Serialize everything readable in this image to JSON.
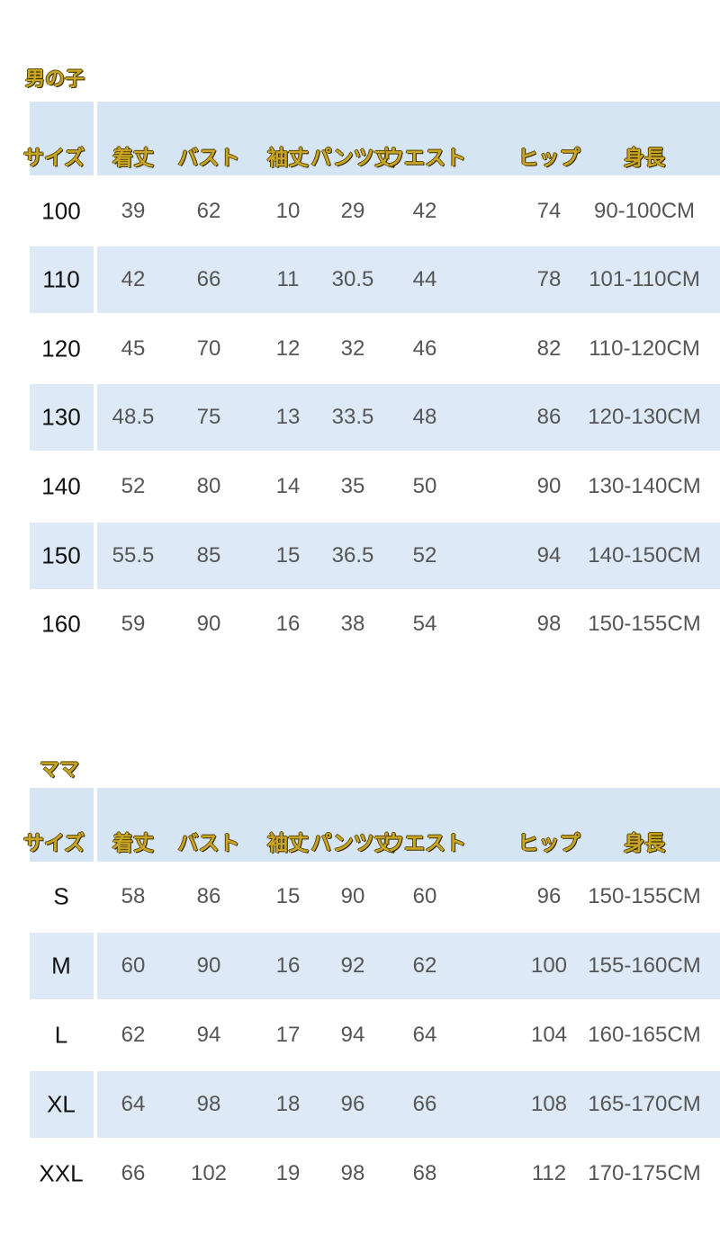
{
  "tables": [
    {
      "title": "男の子",
      "headers": [
        "サイズ",
        "着丈",
        "バスト",
        "袖丈",
        "パンツ丈",
        "ウエスト",
        "ヒップ",
        "身長"
      ],
      "rows": [
        [
          "100",
          "39",
          "62",
          "10",
          "29",
          "42",
          "74",
          "90-100CM"
        ],
        [
          "110",
          "42",
          "66",
          "11",
          "30.5",
          "44",
          "78",
          "101-110CM"
        ],
        [
          "120",
          "45",
          "70",
          "12",
          "32",
          "46",
          "82",
          "110-120CM"
        ],
        [
          "130",
          "48.5",
          "75",
          "13",
          "33.5",
          "48",
          "86",
          "120-130CM"
        ],
        [
          "140",
          "52",
          "80",
          "14",
          "35",
          "50",
          "90",
          "130-140CM"
        ],
        [
          "150",
          "55.5",
          "85",
          "15",
          "36.5",
          "52",
          "94",
          "140-150CM"
        ],
        [
          "160",
          "59",
          "90",
          "16",
          "38",
          "54",
          "98",
          "150-155CM"
        ]
      ]
    },
    {
      "title": "ママ",
      "headers": [
        "サイズ",
        "着丈",
        "バスト",
        "袖丈",
        "パンツ丈",
        "ウエスト",
        "ヒップ",
        "身長"
      ],
      "rows": [
        [
          "S",
          "58",
          "86",
          "15",
          "90",
          "60",
          "96",
          "150-155CM"
        ],
        [
          "M",
          "60",
          "90",
          "16",
          "92",
          "62",
          "100",
          "155-160CM"
        ],
        [
          "L",
          "62",
          "94",
          "17",
          "94",
          "64",
          "104",
          "160-165CM"
        ],
        [
          "XL",
          "64",
          "98",
          "18",
          "96",
          "66",
          "108",
          "165-170CM"
        ],
        [
          "XXL",
          "66",
          "102",
          "19",
          "98",
          "68",
          "112",
          "170-175CM"
        ]
      ]
    }
  ],
  "colors": {
    "header_text": "#c9a526",
    "band": "#dde9f6",
    "value_text": "#555555"
  }
}
